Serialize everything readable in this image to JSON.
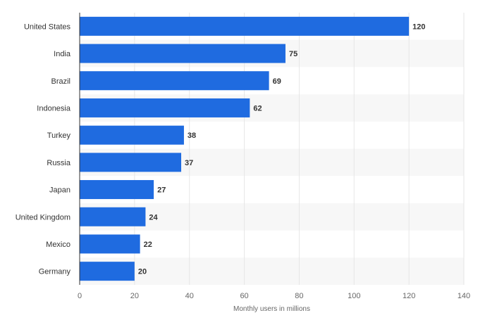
{
  "chart_data": {
    "type": "bar",
    "orientation": "horizontal",
    "title": "",
    "xlabel": "Monthly users in millions",
    "ylabel": "",
    "categories": [
      "United States",
      "India",
      "Brazil",
      "Indonesia",
      "Turkey",
      "Russia",
      "Japan",
      "United Kingdom",
      "Mexico",
      "Germany"
    ],
    "values": [
      120,
      75,
      69,
      62,
      38,
      37,
      27,
      24,
      22,
      20
    ],
    "xlim": [
      0,
      140
    ],
    "xticks": [
      0,
      20,
      40,
      60,
      80,
      100,
      120,
      140
    ],
    "grid": true,
    "legend": "none",
    "colors": {
      "bar": "#1f6be0",
      "band": "#f7f7f7",
      "grid": "#e6e6e6",
      "axis": "#333333"
    }
  }
}
